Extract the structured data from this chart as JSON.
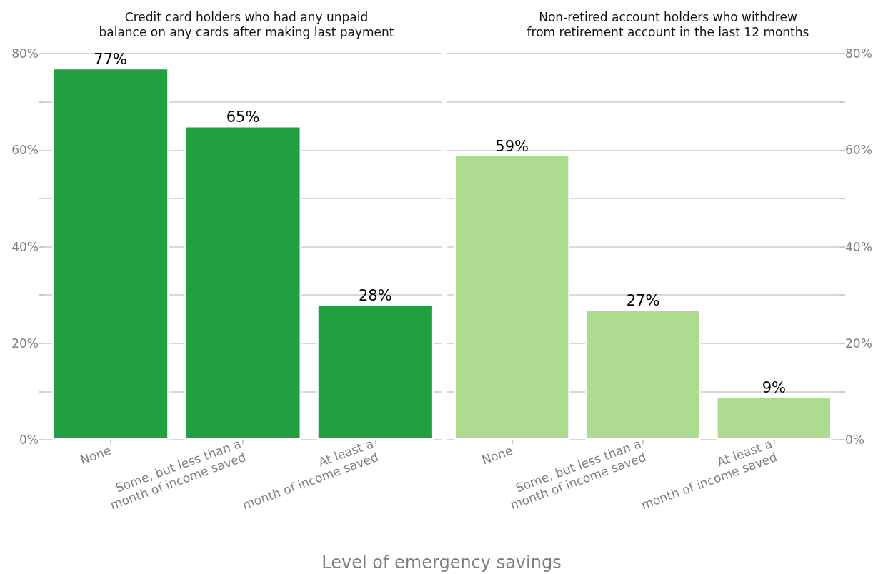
{
  "chart_data": [
    {
      "type": "bar",
      "title": "Credit card holders who had any unpaid\nbalance on any cards after making last payment",
      "xlabel": "Level of emergency savings",
      "categories": [
        "None",
        "Some, but less than a\nmonth of income saved",
        "At least a\nmonth of income saved"
      ],
      "values": [
        77,
        65,
        28
      ],
      "color": "#20a040",
      "value_labels": [
        "77%",
        "65%",
        "28%"
      ],
      "ylim": [
        0,
        80
      ],
      "yticks": [
        {
          "value": 0,
          "label": "0%"
        },
        {
          "value": 10,
          "label": null
        },
        {
          "value": 20,
          "label": "20%"
        },
        {
          "value": 30,
          "label": null
        },
        {
          "value": 40,
          "label": "40%"
        },
        {
          "value": 50,
          "label": null
        },
        {
          "value": 60,
          "label": "60%"
        },
        {
          "value": 70,
          "label": null
        },
        {
          "value": 80,
          "label": "80%"
        }
      ],
      "grid": "y"
    },
    {
      "type": "bar",
      "title": "Non-retired account holders who withdrew\nfrom retirement account in the last 12 months",
      "categories": [
        "None",
        "Some, but less than a\nmonth of income saved",
        "At least a\nmonth of income saved"
      ],
      "series": [
        {
          "color": "#addc91",
          "values": [
            59,
            27,
            9
          ],
          "axis": "y2",
          "value_labels": [
            "59%",
            "27%",
            "9%"
          ]
        }
      ],
      "y2lim": [
        0,
        80
      ],
      "y2ticks": [
        {
          "value": 0,
          "label": "0%"
        },
        {
          "value": 10,
          "label": null
        },
        {
          "value": 20,
          "label": "20%"
        },
        {
          "value": 30,
          "label": null
        },
        {
          "value": 40,
          "label": "40%"
        },
        {
          "value": 50,
          "label": null
        },
        {
          "value": 60,
          "label": "60%"
        },
        {
          "value": 70,
          "label": null
        },
        {
          "value": 80,
          "label": "80%"
        }
      ],
      "grid": "y"
    }
  ]
}
